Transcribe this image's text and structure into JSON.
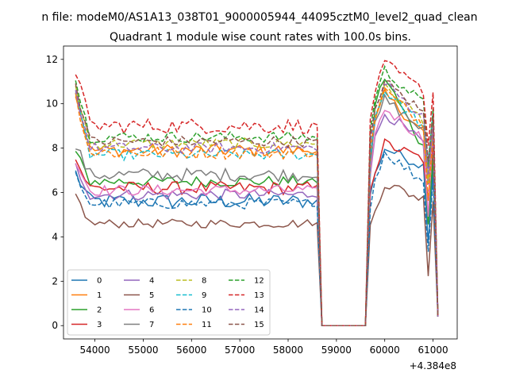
{
  "chart_data": {
    "type": "line",
    "suptitle": "n file: modeM0/AS1A13_038T01_9000005944_44095cztM0_level2_quad_clean",
    "title": "Quadrant 1 module wise count rates with 100.0s bins.",
    "xlabel": "",
    "ylabel": "",
    "x_offset_label": "+4.384e8",
    "xlim": [
      53350,
      61500
    ],
    "ylim": [
      -0.6,
      12.6
    ],
    "xticks": [
      "54000",
      "55000",
      "56000",
      "57000",
      "58000",
      "59000",
      "60000",
      "61000"
    ],
    "yticks": [
      "0",
      "2",
      "4",
      "6",
      "8",
      "10",
      "12"
    ],
    "grid": false,
    "legend": {
      "position": "lower-left",
      "columns": 4
    },
    "x_segments": [
      [
        53600,
        58500
      ],
      [
        58650,
        59650
      ],
      [
        59700,
        61100
      ]
    ],
    "series": [
      {
        "name": "0",
        "color": "#1f77b4",
        "dash": "solid",
        "mean": 5.6,
        "noise": 0.35,
        "gap_peak": 8.0,
        "gap_plateau": 7.2
      },
      {
        "name": "1",
        "color": "#ff7f0e",
        "dash": "solid",
        "mean": 7.9,
        "noise": 0.3,
        "gap_peak": 10.4,
        "gap_plateau": 8.7
      },
      {
        "name": "2",
        "color": "#2ca02c",
        "dash": "solid",
        "mean": 6.5,
        "noise": 0.25,
        "gap_peak": 11.2,
        "gap_plateau": 8.0
      },
      {
        "name": "3",
        "color": "#d62728",
        "dash": "solid",
        "mean": 6.2,
        "noise": 0.3,
        "gap_peak": 8.2,
        "gap_plateau": 7.5
      },
      {
        "name": "4",
        "color": "#9467bd",
        "dash": "solid",
        "mean": 5.9,
        "noise": 0.25,
        "gap_peak": 9.6,
        "gap_plateau": 8.2
      },
      {
        "name": "5",
        "color": "#8c564b",
        "dash": "solid",
        "mean": 4.6,
        "noise": 0.2,
        "gap_peak": 6.4,
        "gap_plateau": 5.7
      },
      {
        "name": "6",
        "color": "#e377c2",
        "dash": "solid",
        "mean": 6.1,
        "noise": 0.25,
        "gap_peak": 9.8,
        "gap_plateau": 8.4
      },
      {
        "name": "7",
        "color": "#7f7f7f",
        "dash": "solid",
        "mean": 6.8,
        "noise": 0.3,
        "gap_peak": 10.2,
        "gap_plateau": 8.8
      },
      {
        "name": "8",
        "color": "#bcbd22",
        "dash": "dashed",
        "mean": 8.2,
        "noise": 0.25,
        "gap_peak": 10.7,
        "gap_plateau": 9.3
      },
      {
        "name": "9",
        "color": "#17becf",
        "dash": "dashed",
        "mean": 7.7,
        "noise": 0.25,
        "gap_peak": 10.6,
        "gap_plateau": 9.0
      },
      {
        "name": "10",
        "color": "#1f77b4",
        "dash": "dashed",
        "mean": 5.5,
        "noise": 0.25,
        "gap_peak": 7.8,
        "gap_plateau": 6.5
      },
      {
        "name": "11",
        "color": "#ff7f0e",
        "dash": "dashed",
        "mean": 7.8,
        "noise": 0.3,
        "gap_peak": 10.6,
        "gap_plateau": 9.1
      },
      {
        "name": "12",
        "color": "#2ca02c",
        "dash": "dashed",
        "mean": 8.5,
        "noise": 0.25,
        "gap_peak": 11.5,
        "gap_plateau": 10.0
      },
      {
        "name": "13",
        "color": "#d62728",
        "dash": "dashed",
        "mean": 9.0,
        "noise": 0.35,
        "gap_peak": 11.8,
        "gap_plateau": 10.6
      },
      {
        "name": "14",
        "color": "#9467bd",
        "dash": "dashed",
        "mean": 8.0,
        "noise": 0.25,
        "gap_peak": 10.9,
        "gap_plateau": 9.4
      },
      {
        "name": "15",
        "color": "#8c564b",
        "dash": "dashed",
        "mean": 8.3,
        "noise": 0.25,
        "gap_peak": 11.0,
        "gap_plateau": 9.6
      }
    ]
  }
}
